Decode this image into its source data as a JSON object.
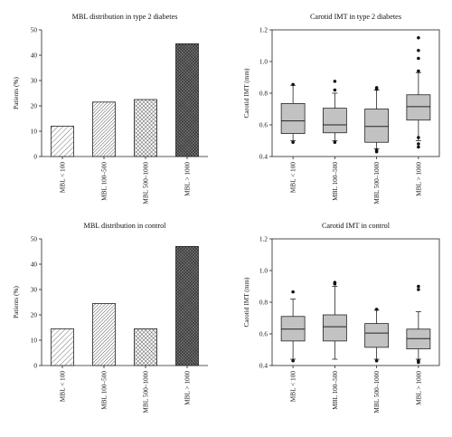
{
  "chart_data": [
    {
      "type": "bar",
      "title": "MBL distribution in type 2 diabetes",
      "ylabel": "Patients (%)",
      "ylim": [
        0,
        50
      ],
      "yticks": [
        0,
        10,
        20,
        30,
        40,
        50
      ],
      "categories": [
        "MBL < 100",
        "MBL 100–500",
        "MBL 500–1000",
        "MBL > 1000"
      ],
      "values": [
        12,
        21.5,
        22.5,
        44.5
      ],
      "fills": [
        "hatch-light",
        "hatch-dense",
        "crosshatch",
        "crosshatch-dark"
      ]
    },
    {
      "type": "box",
      "title": "Carotid IMT in type 2 diabetes",
      "ylabel": "Carotid IMT (mm)",
      "ylim": [
        0.4,
        1.2
      ],
      "yticks": [
        "0.4",
        "0.6",
        "0.8",
        "1.0",
        "1.2"
      ],
      "categories": [
        "MBL < 100",
        "MBL 100–500",
        "MBL 500–1000",
        "MBL > 1000"
      ],
      "boxes": [
        {
          "low": 0.5,
          "q1": 0.545,
          "median": 0.625,
          "q3": 0.735,
          "high": 0.85,
          "outliers": [
            0.855,
            0.49
          ]
        },
        {
          "low": 0.5,
          "q1": 0.55,
          "median": 0.6,
          "q3": 0.705,
          "high": 0.8,
          "outliers": [
            0.875,
            0.82,
            0.49
          ]
        },
        {
          "low": 0.45,
          "q1": 0.49,
          "median": 0.59,
          "q3": 0.7,
          "high": 0.82,
          "outliers": [
            0.835,
            0.825,
            0.44,
            0.43
          ]
        },
        {
          "low": 0.5,
          "q1": 0.63,
          "median": 0.715,
          "q3": 0.79,
          "high": 0.93,
          "outliers": [
            1.15,
            1.07,
            1.02,
            0.94,
            0.52,
            0.48,
            0.46
          ]
        }
      ]
    },
    {
      "type": "bar",
      "title": "MBL distribution in control",
      "ylabel": "Patients (%)",
      "ylim": [
        0,
        50
      ],
      "yticks": [
        0,
        10,
        20,
        30,
        40,
        50
      ],
      "categories": [
        "MBL < 100",
        "MBL 100–500",
        "MBL 500–1000",
        "MBL > 1000"
      ],
      "values": [
        14.5,
        24.5,
        14.5,
        47
      ],
      "fills": [
        "hatch-light",
        "hatch-dense",
        "crosshatch",
        "crosshatch-dark"
      ]
    },
    {
      "type": "box",
      "title": "Carotid IMT in control",
      "ylabel": "Carotid IMT (mm)",
      "ylim": [
        0.4,
        1.2
      ],
      "yticks": [
        "0.4",
        "0.6",
        "0.8",
        "1.0",
        "1.2"
      ],
      "categories": [
        "MBL < 100",
        "MBL 100–500",
        "MBL 500–1000",
        "MBL > 1000"
      ],
      "boxes": [
        {
          "low": 0.44,
          "q1": 0.555,
          "median": 0.63,
          "q3": 0.71,
          "high": 0.82,
          "outliers": [
            0.865,
            0.43
          ]
        },
        {
          "low": 0.44,
          "q1": 0.555,
          "median": 0.645,
          "q3": 0.72,
          "high": 0.9,
          "outliers": [
            0.925,
            0.915
          ]
        },
        {
          "low": 0.44,
          "q1": 0.515,
          "median": 0.605,
          "q3": 0.665,
          "high": 0.75,
          "outliers": [
            0.755,
            0.43
          ]
        },
        {
          "low": 0.44,
          "q1": 0.505,
          "median": 0.57,
          "q3": 0.63,
          "high": 0.74,
          "outliers": [
            0.9,
            0.88,
            0.43,
            0.42
          ]
        }
      ]
    }
  ]
}
